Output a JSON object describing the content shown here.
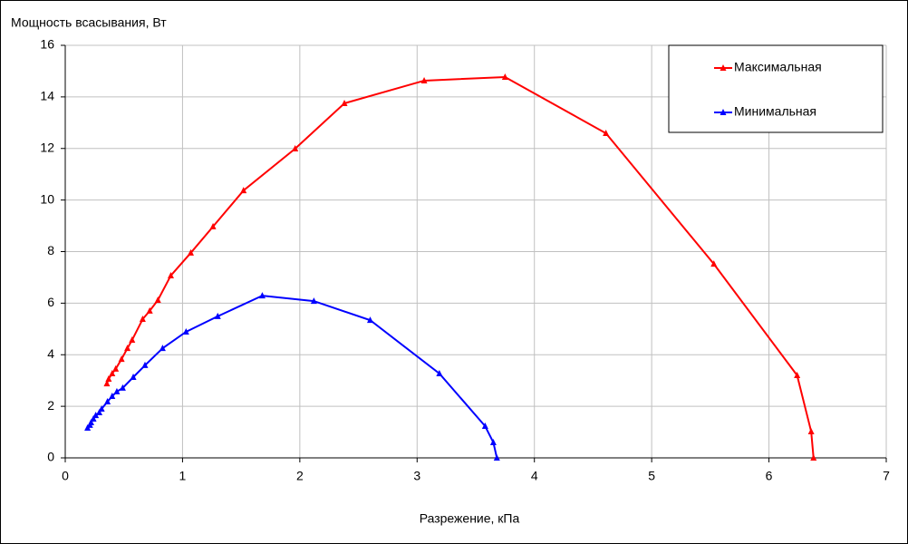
{
  "chart_data": {
    "type": "line",
    "xlabel": "Разрежение, кПа",
    "ylabel": "Мощность всасывания, Вт",
    "xlim": [
      0,
      7
    ],
    "xticks": [
      0,
      1,
      2,
      3,
      4,
      5,
      6,
      7
    ],
    "ylim": [
      0,
      16
    ],
    "yticks": [
      0,
      2,
      4,
      6,
      8,
      10,
      12,
      14,
      16
    ],
    "grid": true,
    "legend": "top-right",
    "series": [
      {
        "name": "Максимальная",
        "color": "#ff0000",
        "x": [
          0.355,
          0.37,
          0.4,
          0.43,
          0.48,
          0.53,
          0.57,
          0.66,
          0.72,
          0.79,
          0.9,
          1.07,
          1.26,
          1.52,
          1.96,
          2.38,
          3.06,
          3.75,
          4.61,
          5.53,
          6.24,
          6.36,
          6.38
        ],
        "values": [
          2.88,
          3.06,
          3.27,
          3.45,
          3.83,
          4.25,
          4.57,
          5.38,
          5.7,
          6.12,
          7.07,
          7.95,
          8.97,
          10.37,
          11.99,
          13.75,
          14.63,
          14.77,
          12.59,
          7.52,
          3.2,
          1.02,
          0
        ]
      },
      {
        "name": "Минимальная",
        "color": "#0000ff",
        "x": [
          0.19,
          0.21,
          0.22,
          0.24,
          0.26,
          0.29,
          0.31,
          0.36,
          0.4,
          0.44,
          0.49,
          0.58,
          0.68,
          0.83,
          1.03,
          1.3,
          1.68,
          2.12,
          2.6,
          3.19,
          3.58,
          3.65,
          3.68
        ],
        "values": [
          1.16,
          1.27,
          1.37,
          1.51,
          1.65,
          1.76,
          1.9,
          2.18,
          2.39,
          2.57,
          2.71,
          3.13,
          3.59,
          4.25,
          4.89,
          5.49,
          6.29,
          6.08,
          5.34,
          3.27,
          1.23,
          0.6,
          0
        ]
      }
    ]
  }
}
